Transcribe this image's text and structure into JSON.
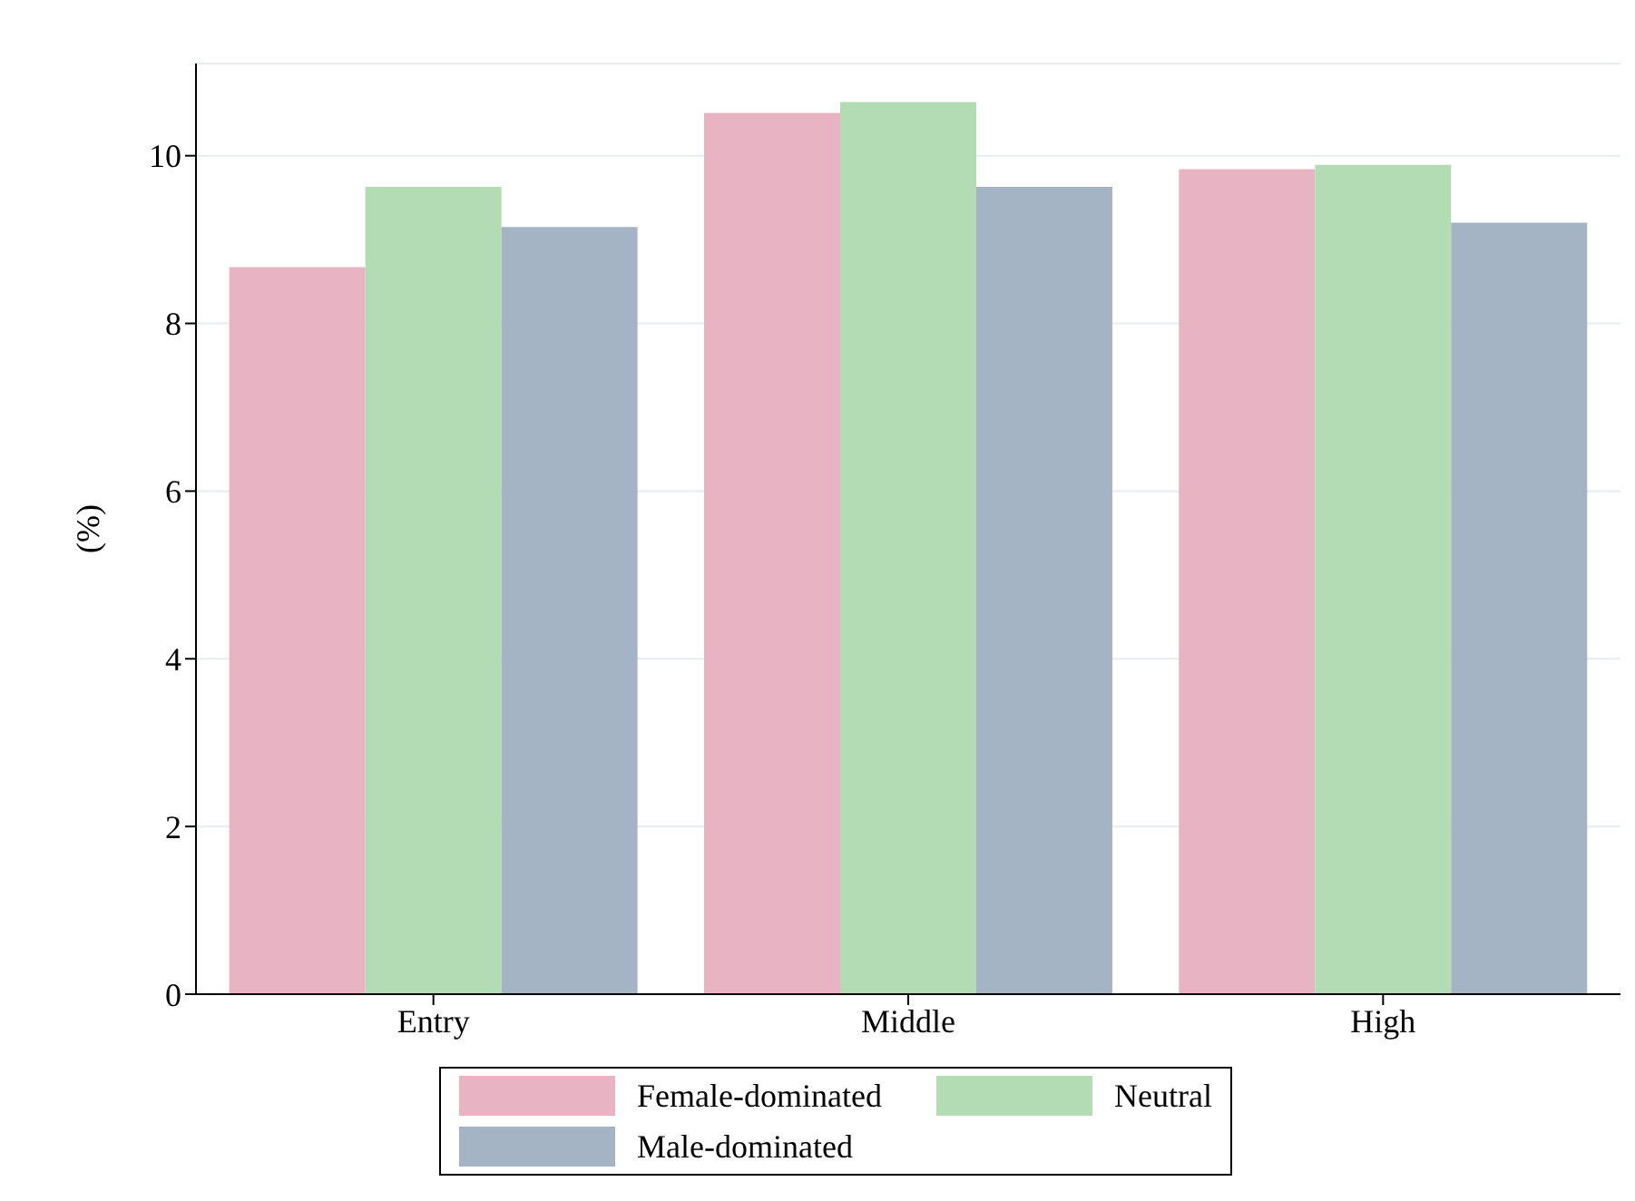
{
  "chart_data": {
    "type": "bar",
    "categories": [
      "Entry",
      "Middle",
      "High"
    ],
    "ylabel": "(%)",
    "ylim": [
      0,
      11.1
    ],
    "yticks": [
      0,
      2,
      4,
      6,
      8,
      10
    ],
    "grid": "y",
    "legend": "bottom",
    "series": [
      {
        "name": "Female-dominated",
        "color": "#e8b4c4",
        "values": [
          8.67,
          10.51,
          9.84
        ]
      },
      {
        "name": "Neutral",
        "color": "#b4dcb4",
        "values": [
          9.63,
          10.64,
          9.89
        ]
      },
      {
        "name": "Male-dominated",
        "color": "#a4b4c4",
        "values": [
          9.15,
          9.63,
          9.2
        ]
      }
    ]
  }
}
